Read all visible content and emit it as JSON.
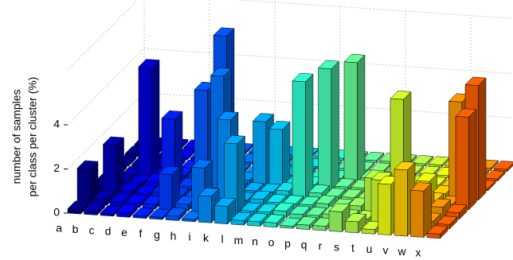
{
  "chart_data": {
    "type": "bar3d",
    "ylabel": [
      "number of samples",
      "per class per cluster (%)"
    ],
    "categories": [
      "a",
      "b",
      "c",
      "d",
      "e",
      "f",
      "g",
      "h",
      "i",
      "k",
      "l",
      "m",
      "n",
      "o",
      "p",
      "q",
      "r",
      "s",
      "t",
      "u",
      "v",
      "w",
      "x"
    ],
    "colors": [
      "#00008f",
      "#0000b5",
      "#0000db",
      "#0004ff",
      "#0020ff",
      "#003cff",
      "#0058ff",
      "#0074ff",
      "#0090ff",
      "#00acff",
      "#00c8ff",
      "#10e4f0",
      "#2cffd3",
      "#48ffb7",
      "#64ff9b",
      "#80ff80",
      "#9bff64",
      "#b7ff48",
      "#d3ff2c",
      "#f0ff10",
      "#ffd000",
      "#ff9800",
      "#ff6000"
    ],
    "values": [
      [
        0.2,
        1.6,
        0.3,
        0.2,
        0.1,
        0.1,
        0.1,
        0.1
      ],
      [
        0.2,
        0.3,
        2.3,
        0.2,
        0.1,
        0.1,
        0.1,
        0.1
      ],
      [
        0.1,
        0.2,
        0.3,
        0.2,
        5.0,
        0.1,
        0.1,
        0.1
      ],
      [
        0.2,
        0.2,
        0.2,
        0.3,
        0.2,
        0.1,
        0.1,
        0.1
      ],
      [
        0.1,
        0.2,
        0.3,
        3.2,
        0.2,
        0.1,
        0.1,
        0.1
      ],
      [
        0.1,
        1.6,
        0.2,
        0.2,
        0.2,
        0.1,
        0.1,
        0.1
      ],
      [
        0.2,
        0.3,
        0.2,
        4.6,
        0.2,
        6.2,
        0.1,
        0.1
      ],
      [
        0.1,
        2.0,
        0.3,
        5.3,
        0.2,
        0.1,
        0.1,
        0.1
      ],
      [
        1.2,
        0.3,
        3.8,
        0.2,
        0.2,
        0.1,
        0.1,
        0.1
      ],
      [
        0.8,
        3.2,
        0.2,
        0.2,
        2.9,
        0.1,
        0.1,
        0.1
      ],
      [
        0.2,
        0.2,
        0.3,
        0.2,
        2.6,
        0.1,
        0.1,
        0.1
      ],
      [
        0.2,
        0.2,
        0.2,
        0.3,
        0.2,
        0.2,
        0.1,
        0.1
      ],
      [
        0.2,
        0.3,
        0.2,
        5.3,
        0.2,
        0.1,
        0.1,
        0.1
      ],
      [
        0.1,
        0.2,
        0.2,
        0.3,
        5.5,
        0.1,
        0.1,
        0.1
      ],
      [
        0.2,
        0.2,
        0.3,
        0.2,
        0.2,
        5.4,
        0.1,
        0.1
      ],
      [
        0.2,
        0.3,
        0.2,
        0.2,
        0.2,
        0.2,
        0.1,
        0.1
      ],
      [
        0.9,
        0.2,
        0.3,
        0.2,
        0.2,
        0.1,
        0.1,
        0.1
      ],
      [
        0.5,
        0.2,
        1.6,
        0.2,
        0.2,
        0.1,
        0.1,
        0.1
      ],
      [
        0.2,
        2.0,
        0.2,
        4.8,
        0.2,
        0.1,
        0.1,
        0.1
      ],
      [
        2.3,
        0.2,
        0.3,
        0.2,
        0.7,
        0.1,
        0.1,
        0.1
      ],
      [
        3.0,
        0.2,
        0.8,
        0.3,
        0.2,
        0.1,
        0.1,
        0.1
      ],
      [
        2.1,
        0.3,
        0.5,
        0.2,
        4.4,
        0.1,
        0.1,
        0.1
      ],
      [
        0.2,
        0.2,
        0.3,
        4.2,
        5.2,
        0.1,
        0.1,
        0.1
      ]
    ],
    "ylim": [
      0,
      6.5
    ],
    "yticks": [
      0,
      2,
      4
    ],
    "grid": true
  }
}
